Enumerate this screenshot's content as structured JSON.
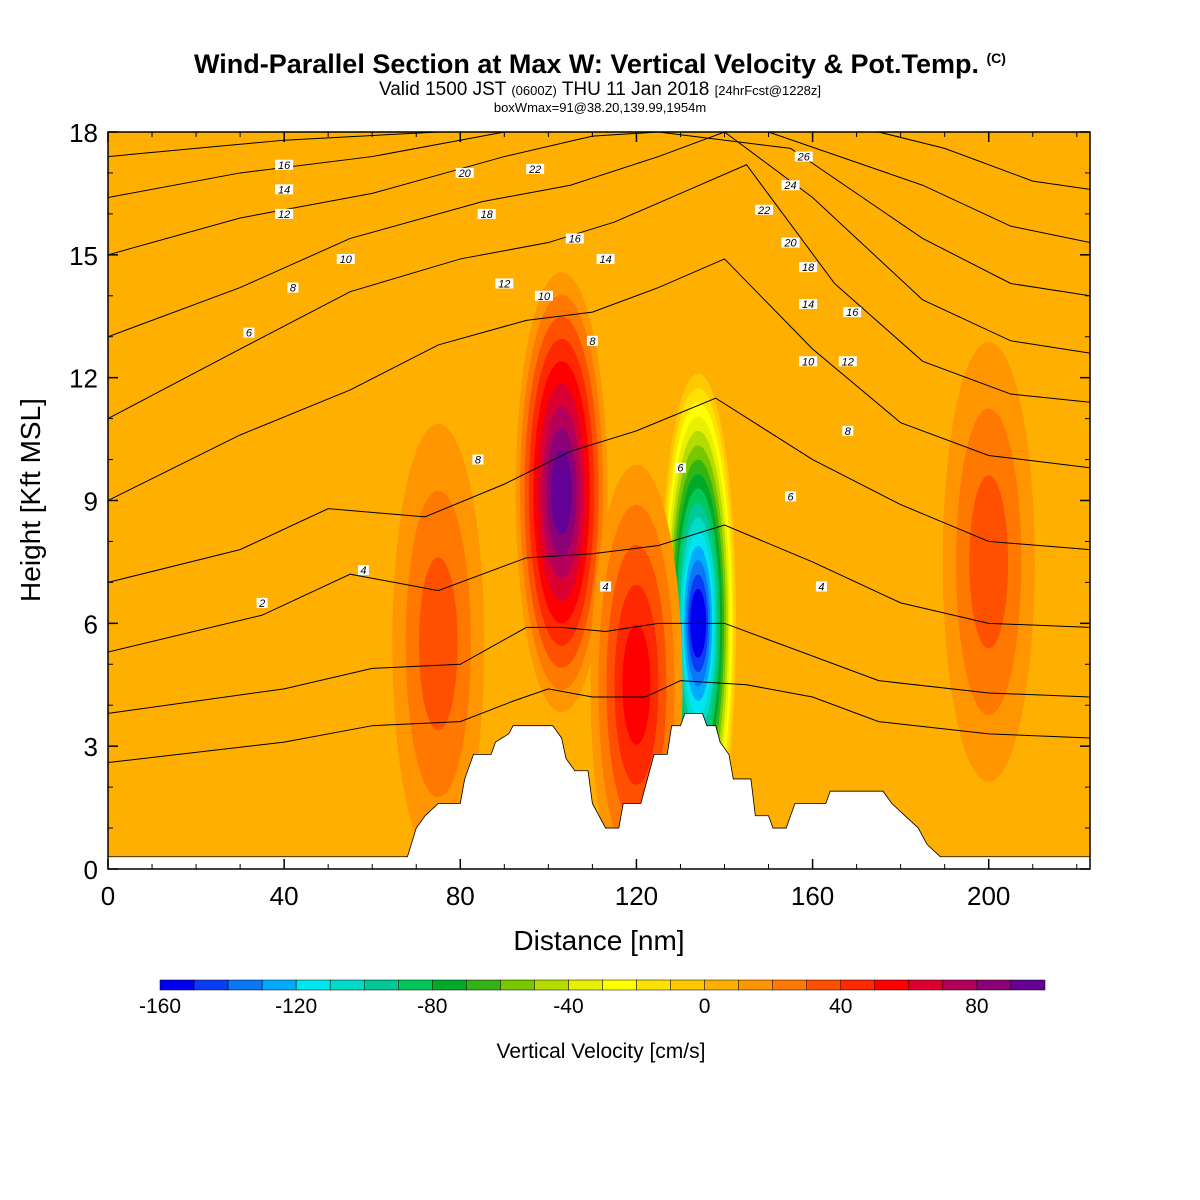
{
  "chart_data": {
    "type": "heatmap",
    "title": "Wind-Parallel Section at Max W: Vertical Velocity & Pot.Temp.",
    "title_mark": "(C)",
    "subtitle_main": "Valid 1500 JST",
    "subtitle_utc": "(0600Z)",
    "subtitle_date": "THU 11 Jan 2018",
    "subtitle_fcst": "[24hrFcst@1228z]",
    "subtitle2": "boxWmax=91@38.20,139.99,1954m",
    "xlabel": "Distance [nm]",
    "ylabel": "Height [Kft MSL]",
    "xlim": [
      0,
      223
    ],
    "ylim": [
      0,
      18
    ],
    "xticks": [
      0,
      40,
      80,
      120,
      160,
      200
    ],
    "yticks": [
      0,
      3,
      6,
      9,
      12,
      15,
      18
    ],
    "colorbar": {
      "label": "Vertical Velocity [cm/s]",
      "range": [
        -160,
        100
      ],
      "tick_values": [
        -160,
        -120,
        -80,
        -40,
        0,
        40,
        80
      ],
      "colors": [
        "#0000f0",
        "#0a3cf5",
        "#0a78f5",
        "#00aaff",
        "#00e6f0",
        "#00dcc8",
        "#00c896",
        "#00c85a",
        "#00aa28",
        "#32b414",
        "#78c800",
        "#b4dc00",
        "#e6f000",
        "#ffff00",
        "#ffe100",
        "#ffc800",
        "#ffaf00",
        "#ff9600",
        "#ff7800",
        "#ff5000",
        "#ff2800",
        "#ff0000",
        "#dc0032",
        "#b4005a",
        "#8c0078",
        "#640096"
      ]
    },
    "w_features": [
      {
        "x": 103,
        "z": 9.2,
        "w": 91
      },
      {
        "x": 134,
        "z": 6.0,
        "w": -160
      },
      {
        "x": 120,
        "z": 4.5,
        "w": 45
      },
      {
        "x": 75,
        "z": 5.5,
        "w": 25
      },
      {
        "x": 200,
        "z": 7.5,
        "w": 30
      }
    ],
    "terrain": [
      [
        0,
        0.3
      ],
      [
        68,
        0.3
      ],
      [
        70,
        1.0
      ],
      [
        72,
        1.3
      ],
      [
        75,
        1.6
      ],
      [
        80,
        1.6
      ],
      [
        81,
        2.2
      ],
      [
        83,
        2.8
      ],
      [
        87,
        2.8
      ],
      [
        88,
        3.1
      ],
      [
        91,
        3.3
      ],
      [
        92,
        3.5
      ],
      [
        101,
        3.5
      ],
      [
        103,
        3.2
      ],
      [
        104,
        2.7
      ],
      [
        106,
        2.4
      ],
      [
        109,
        2.4
      ],
      [
        110,
        1.6
      ],
      [
        113,
        1.0
      ],
      [
        116,
        1.0
      ],
      [
        117,
        1.6
      ],
      [
        121,
        1.6
      ],
      [
        124,
        2.8
      ],
      [
        127,
        2.8
      ],
      [
        128,
        3.5
      ],
      [
        130,
        3.5
      ],
      [
        131,
        3.8
      ],
      [
        135,
        3.8
      ],
      [
        136,
        3.5
      ],
      [
        138,
        3.5
      ],
      [
        139,
        3.1
      ],
      [
        141,
        2.8
      ],
      [
        142,
        2.2
      ],
      [
        146,
        2.2
      ],
      [
        147,
        1.3
      ],
      [
        150,
        1.3
      ],
      [
        151,
        1.0
      ],
      [
        154,
        1.0
      ],
      [
        155,
        1.3
      ],
      [
        156,
        1.6
      ],
      [
        160,
        1.6
      ],
      [
        163,
        1.6
      ],
      [
        164,
        1.9
      ],
      [
        176,
        1.9
      ],
      [
        178,
        1.6
      ],
      [
        181,
        1.3
      ],
      [
        184,
        1.0
      ],
      [
        186,
        0.6
      ],
      [
        189,
        0.3
      ],
      [
        223,
        0.3
      ]
    ],
    "theta_contours": [
      {
        "pts": [
          [
            0,
            2.6
          ],
          [
            40,
            3.1
          ],
          [
            60,
            3.5
          ],
          [
            80,
            3.6
          ],
          [
            92,
            4.1
          ],
          [
            100,
            4.4
          ],
          [
            110,
            4.2
          ],
          [
            122,
            4.2
          ],
          [
            130,
            4.6
          ],
          [
            145,
            4.5
          ],
          [
            160,
            4.2
          ],
          [
            175,
            3.6
          ],
          [
            200,
            3.3
          ],
          [
            223,
            3.2
          ]
        ]
      },
      {
        "pts": [
          [
            0,
            3.8
          ],
          [
            40,
            4.4
          ],
          [
            60,
            4.9
          ],
          [
            80,
            5.0
          ],
          [
            95,
            5.9
          ],
          [
            103,
            5.9
          ],
          [
            113,
            5.8
          ],
          [
            125,
            6.0
          ],
          [
            140,
            6.0
          ],
          [
            155,
            5.4
          ],
          [
            175,
            4.6
          ],
          [
            200,
            4.3
          ],
          [
            223,
            4.2
          ]
        ]
      },
      {
        "pts": [
          [
            0,
            5.3
          ],
          [
            35,
            6.2
          ],
          [
            55,
            7.2
          ],
          [
            75,
            6.8
          ],
          [
            95,
            7.6
          ],
          [
            110,
            7.7
          ],
          [
            125,
            7.9
          ],
          [
            140,
            8.4
          ],
          [
            160,
            7.5
          ],
          [
            180,
            6.5
          ],
          [
            200,
            6.0
          ],
          [
            223,
            5.9
          ]
        ]
      },
      {
        "pts": [
          [
            0,
            7.0
          ],
          [
            30,
            7.8
          ],
          [
            50,
            8.8
          ],
          [
            72,
            8.6
          ],
          [
            90,
            9.4
          ],
          [
            105,
            10.2
          ],
          [
            120,
            10.7
          ],
          [
            138,
            11.5
          ],
          [
            160,
            10.0
          ],
          [
            180,
            8.9
          ],
          [
            200,
            8.0
          ],
          [
            223,
            7.8
          ]
        ]
      },
      {
        "pts": [
          [
            0,
            9.0
          ],
          [
            30,
            10.6
          ],
          [
            55,
            11.7
          ],
          [
            75,
            12.8
          ],
          [
            95,
            13.4
          ],
          [
            110,
            13.6
          ],
          [
            125,
            14.2
          ],
          [
            140,
            14.9
          ],
          [
            160,
            12.7
          ],
          [
            180,
            10.9
          ],
          [
            200,
            10.1
          ],
          [
            223,
            9.8
          ]
        ]
      },
      {
        "pts": [
          [
            0,
            11.0
          ],
          [
            30,
            12.7
          ],
          [
            55,
            14.1
          ],
          [
            80,
            14.9
          ],
          [
            100,
            15.3
          ],
          [
            115,
            15.8
          ],
          [
            130,
            16.5
          ],
          [
            145,
            17.2
          ],
          [
            165,
            14.3
          ],
          [
            185,
            12.4
          ],
          [
            205,
            11.6
          ],
          [
            223,
            11.4
          ]
        ]
      },
      {
        "pts": [
          [
            0,
            13.0
          ],
          [
            30,
            14.2
          ],
          [
            55,
            15.4
          ],
          [
            85,
            16.3
          ],
          [
            105,
            16.7
          ],
          [
            125,
            17.4
          ],
          [
            140,
            18.0
          ],
          [
            160,
            16.4
          ],
          [
            185,
            13.9
          ],
          [
            205,
            12.9
          ],
          [
            223,
            12.6
          ]
        ]
      },
      {
        "pts": [
          [
            0,
            15.0
          ],
          [
            30,
            15.9
          ],
          [
            60,
            16.5
          ],
          [
            90,
            17.4
          ],
          [
            110,
            17.9
          ],
          [
            125,
            18.0
          ],
          [
            155,
            17.6
          ],
          [
            185,
            15.4
          ],
          [
            205,
            14.3
          ],
          [
            223,
            14.0
          ]
        ]
      },
      {
        "pts": [
          [
            0,
            16.4
          ],
          [
            30,
            17.0
          ],
          [
            60,
            17.4
          ],
          [
            90,
            18.0
          ],
          [
            110,
            18.0
          ],
          [
            150,
            18.0
          ],
          [
            185,
            16.7
          ],
          [
            205,
            15.7
          ],
          [
            223,
            15.3
          ]
        ]
      },
      {
        "pts": [
          [
            0,
            17.4
          ],
          [
            40,
            17.8
          ],
          [
            75,
            18.0
          ],
          [
            175,
            18.0
          ],
          [
            190,
            17.6
          ],
          [
            210,
            16.8
          ],
          [
            223,
            16.6
          ]
        ]
      }
    ],
    "contour_labels": [
      {
        "x": 40,
        "z": 17.2,
        "text": "16"
      },
      {
        "x": 40,
        "z": 16.6,
        "text": "14"
      },
      {
        "x": 40,
        "z": 16.0,
        "text": "12"
      },
      {
        "x": 54,
        "z": 14.9,
        "text": "10"
      },
      {
        "x": 42,
        "z": 14.2,
        "text": "8"
      },
      {
        "x": 32,
        "z": 13.1,
        "text": "6"
      },
      {
        "x": 81,
        "z": 17.0,
        "text": "20"
      },
      {
        "x": 97,
        "z": 17.1,
        "text": "22"
      },
      {
        "x": 86,
        "z": 16.0,
        "text": "18"
      },
      {
        "x": 106,
        "z": 15.4,
        "text": "16"
      },
      {
        "x": 113,
        "z": 14.9,
        "text": "14"
      },
      {
        "x": 90,
        "z": 14.3,
        "text": "12"
      },
      {
        "x": 99,
        "z": 14.0,
        "text": "10"
      },
      {
        "x": 110,
        "z": 12.9,
        "text": "8"
      },
      {
        "x": 84,
        "z": 10.0,
        "text": "8"
      },
      {
        "x": 130,
        "z": 9.8,
        "text": "6"
      },
      {
        "x": 58,
        "z": 7.3,
        "text": "4"
      },
      {
        "x": 35,
        "z": 6.5,
        "text": "2"
      },
      {
        "x": 113,
        "z": 6.9,
        "text": "4"
      },
      {
        "x": 158,
        "z": 17.4,
        "text": "26"
      },
      {
        "x": 155,
        "z": 16.7,
        "text": "24"
      },
      {
        "x": 149,
        "z": 16.1,
        "text": "22"
      },
      {
        "x": 155,
        "z": 15.3,
        "text": "20"
      },
      {
        "x": 159,
        "z": 14.7,
        "text": "18"
      },
      {
        "x": 159,
        "z": 13.8,
        "text": "14"
      },
      {
        "x": 169,
        "z": 13.6,
        "text": "16"
      },
      {
        "x": 159,
        "z": 12.4,
        "text": "10"
      },
      {
        "x": 168,
        "z": 12.4,
        "text": "12"
      },
      {
        "x": 168,
        "z": 10.7,
        "text": "8"
      },
      {
        "x": 155,
        "z": 9.1,
        "text": "6"
      },
      {
        "x": 162,
        "z": 6.9,
        "text": "4"
      }
    ]
  }
}
